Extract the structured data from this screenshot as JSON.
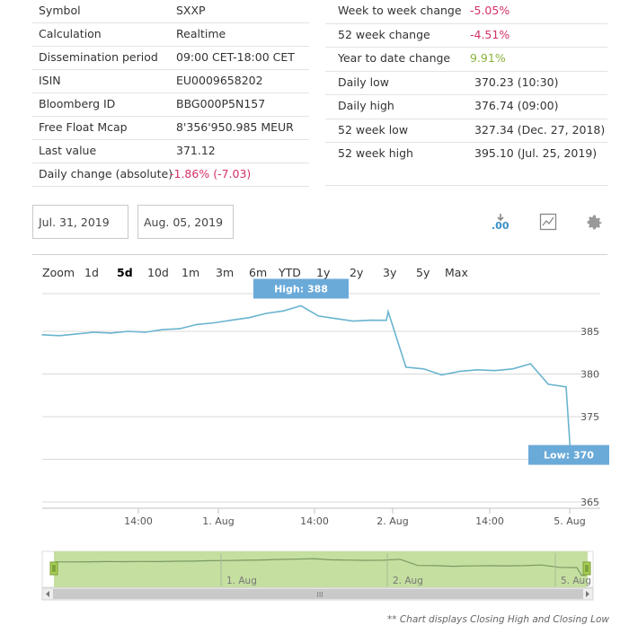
{
  "left_table": [
    {
      "label": "Symbol",
      "value": "SXXP",
      "tone": ""
    },
    {
      "label": "Calculation",
      "value": "Realtime",
      "tone": ""
    },
    {
      "label": "Dissemination period",
      "value": "09:00 CET-18:00 CET",
      "tone": ""
    },
    {
      "label": "ISIN",
      "value": "EU0009658202",
      "tone": ""
    },
    {
      "label": "Bloomberg ID",
      "value": "BBG000P5N157",
      "tone": ""
    },
    {
      "label": "Free Float Mcap",
      "value": "8'356'950.985 MEUR",
      "tone": ""
    },
    {
      "label": "Last value",
      "value": "371.12",
      "tone": ""
    },
    {
      "label": "Daily change (absolute)",
      "value": "-1.86% (-7.03)",
      "tone": "neg"
    }
  ],
  "right_table": [
    {
      "label": "Week to week change",
      "value": "-5.05%",
      "tone": "neg"
    },
    {
      "label": "52 week change",
      "value": "-4.51%",
      "tone": "neg"
    },
    {
      "label": "Year to date change",
      "value": "9.91%",
      "tone": "pos"
    },
    {
      "label": "Daily low",
      "value": "370.23 (10:30)",
      "tone": ""
    },
    {
      "label": "Daily high",
      "value": "376.74 (09:00)",
      "tone": ""
    },
    {
      "label": "52 week low",
      "value": "327.34 (Dec. 27, 2018)",
      "tone": ""
    },
    {
      "label": "52 week high",
      "value": "395.10 (Jul. 25, 2019)",
      "tone": ""
    }
  ],
  "date_range": {
    "from": "Jul. 31, 2019",
    "to": "Aug. 05, 2019"
  },
  "toolbar": {
    "decimals_icon_text": ".00",
    "icons": [
      "decimals-icon",
      "chart-type-icon",
      "gear-icon"
    ]
  },
  "zoom": {
    "label": "Zoom",
    "options": [
      "1d",
      "5d",
      "10d",
      "1m",
      "3m",
      "6m",
      "YTD",
      "1y",
      "2y",
      "3y",
      "5y",
      "Max"
    ],
    "active": "5d"
  },
  "colors": {
    "line": "#6ab4cf",
    "flag": "#6aaad9",
    "navigator_fill": "#c5dfa0",
    "navigator_line": "#7a9a62",
    "negative": "#d3306b",
    "positive": "#8ab33a"
  },
  "chart_data": {
    "type": "line",
    "y_ticks": [
      "385",
      "380",
      "375",
      "370",
      "365"
    ],
    "ylim": [
      365,
      390
    ],
    "x_ticks": [
      "14:00",
      "1. Aug",
      "14:00",
      "2. Aug",
      "14:00",
      "5. Aug"
    ],
    "x": [
      "Jul 31 09:00",
      "Jul 31 10:00",
      "Jul 31 11:00",
      "Jul 31 12:00",
      "Jul 31 13:00",
      "Jul 31 14:00",
      "Jul 31 15:00",
      "Jul 31 16:00",
      "Jul 31 17:00",
      "Jul 31 18:00",
      "Aug 1 09:00",
      "Aug 1 10:00",
      "Aug 1 11:00",
      "Aug 1 12:00",
      "Aug 1 13:00",
      "Aug 1 14:00",
      "Aug 1 15:00",
      "Aug 1 16:00",
      "Aug 1 17:00",
      "Aug 1 18:00",
      "Aug 2 09:00",
      "Aug 2 10:00",
      "Aug 2 11:00",
      "Aug 2 12:00",
      "Aug 2 13:00",
      "Aug 2 14:00",
      "Aug 2 15:00",
      "Aug 2 16:00",
      "Aug 2 17:00",
      "Aug 2 18:00",
      "Aug 5 09:00",
      "Aug 5 10:30",
      "Aug 5 11:00"
    ],
    "series": [
      {
        "values": [
          384.6,
          384.5,
          384.7,
          384.9,
          384.8,
          385.0,
          384.9,
          385.2,
          385.3,
          385.8,
          386.0,
          386.3,
          386.6,
          387.1,
          387.4,
          388.0,
          386.8,
          386.5,
          386.2,
          386.3,
          387.3,
          380.8,
          380.6,
          379.9,
          380.3,
          380.5,
          380.4,
          380.6,
          381.2,
          378.8,
          378.5,
          370.5,
          370.2
        ]
      }
    ],
    "annotations": {
      "high_flag": "High: 388",
      "low_flag": "Low: 370"
    },
    "footnote": "** Chart displays Closing High and Closing Low"
  },
  "navigator": {
    "labels": [
      "1. Aug",
      "2. Aug",
      "5. Aug"
    ],
    "scroll_grip": "III"
  }
}
